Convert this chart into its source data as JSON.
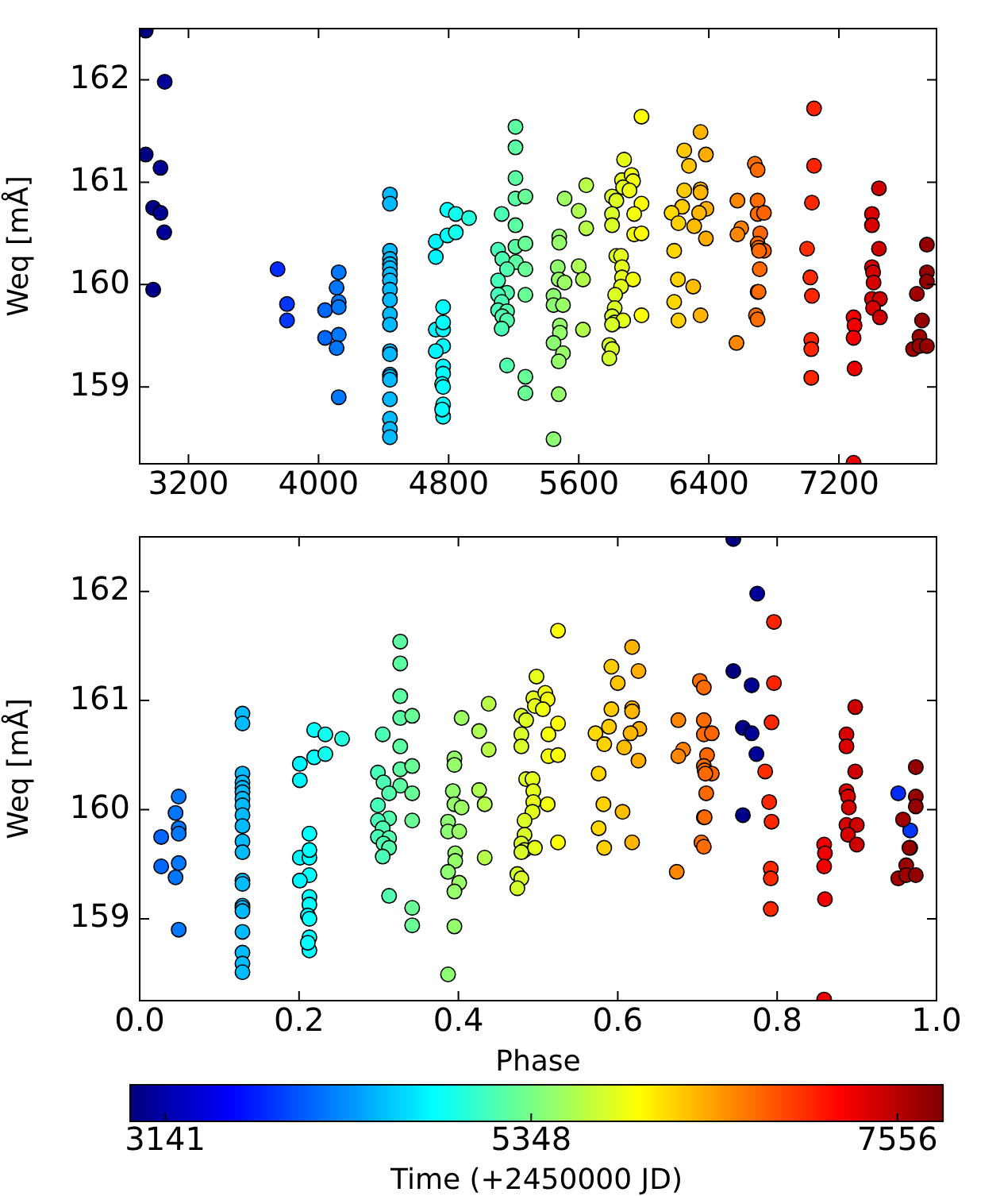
{
  "chart_data": [
    {
      "type": "scatter",
      "ylabel": "Weq [mÅ]",
      "marker": "circle",
      "legend": false,
      "x": [
        2937,
        3054,
        2937,
        3028,
        2983,
        3028,
        3051,
        2983,
        3748,
        3806,
        3806,
        4124,
        4111,
        4040,
        4124,
        4124,
        4040,
        4124,
        4111,
        4124,
        4439,
        4439,
        4439,
        4439,
        4439,
        4439,
        4439,
        4439,
        4439,
        4439,
        4439,
        4439,
        4439,
        4439,
        4439,
        4439,
        4439,
        4439,
        4439,
        4439,
        4439,
        4792,
        4844,
        4925,
        4721,
        4792,
        4844,
        4721,
        4766,
        4721,
        4766,
        4766,
        4766,
        4721,
        4766,
        4766,
        4760,
        4766,
        4766,
        4766,
        4760,
        5211,
        5211,
        5211,
        5211,
        5272,
        5126,
        5211,
        5211,
        5272,
        5104,
        5130,
        5214,
        5159,
        5272,
        5104,
        5159,
        5104,
        5272,
        5126,
        5104,
        5159,
        5130,
        5159,
        5126,
        5159,
        5272,
        5272,
        5513,
        5646,
        5600,
        5646,
        5480,
        5480,
        5471,
        5600,
        5477,
        5513,
        5626,
        5445,
        5445,
        5503,
        5484,
        5484,
        5626,
        5445,
        5503,
        5477,
        5477,
        5445,
        5986,
        5879,
        5866,
        5925,
        5934,
        5873,
        5912,
        5805,
        5831,
        5986,
        5805,
        5941,
        5805,
        5941,
        5986,
        5831,
        5860,
        5866,
        5866,
        5934,
        5860,
        5824,
        5821,
        5805,
        5821,
        5873,
        5805,
        5986,
        5788,
        5805,
        5788,
        6349,
        6249,
        6382,
        6278,
        6249,
        6349,
        6349,
        6236,
        6385,
        6171,
        6340,
        6213,
        6310,
        6382,
        6187,
        6210,
        6304,
        6187,
        6349,
        6213,
        6683,
        6700,
        6576,
        6700,
        6700,
        6739,
        6599,
        6576,
        6716,
        6700,
        6706,
        6739,
        6709,
        6713,
        6700,
        6706,
        6690,
        6700,
        6570,
        7047,
        7047,
        7034,
        7004,
        7024,
        7034,
        7030,
        7030,
        7030,
        7290,
        7296,
        7290,
        7296,
        7290,
        7446,
        7403,
        7403,
        7446,
        7403,
        7410,
        7413,
        7403,
        7452,
        7410,
        7452,
        7741,
        7741,
        7741,
        7679,
        7711,
        7695,
        7656,
        7695,
        7741
      ],
      "values": [
        162.48,
        161.98,
        161.27,
        161.14,
        160.75,
        160.7,
        160.51,
        159.95,
        160.15,
        159.81,
        159.65,
        160.12,
        159.97,
        159.75,
        159.83,
        159.78,
        159.48,
        159.51,
        159.38,
        158.9,
        160.88,
        160.79,
        160.33,
        160.25,
        160.2,
        160.16,
        160.1,
        160.04,
        159.95,
        159.85,
        159.71,
        159.61,
        159.35,
        159.32,
        159.12,
        159.1,
        159.07,
        158.88,
        158.69,
        158.59,
        158.51,
        160.73,
        160.69,
        160.65,
        160.42,
        160.48,
        160.51,
        160.27,
        159.78,
        159.56,
        159.56,
        159.63,
        159.4,
        159.35,
        159.2,
        159.13,
        159.03,
        159.0,
        158.83,
        158.71,
        158.78,
        161.54,
        161.34,
        161.04,
        160.84,
        160.86,
        160.69,
        160.58,
        160.37,
        160.4,
        160.34,
        160.25,
        160.22,
        160.15,
        160.15,
        160.04,
        159.92,
        159.9,
        159.9,
        159.83,
        159.75,
        159.74,
        159.69,
        159.65,
        159.57,
        159.21,
        159.1,
        158.94,
        160.84,
        160.97,
        160.72,
        160.55,
        160.47,
        160.41,
        160.17,
        160.18,
        160.05,
        160.02,
        160.05,
        159.89,
        159.8,
        159.8,
        159.6,
        159.53,
        159.56,
        159.43,
        159.33,
        159.25,
        158.93,
        158.49,
        161.64,
        161.22,
        161.02,
        161.07,
        161.01,
        160.95,
        160.92,
        160.86,
        160.82,
        160.79,
        160.69,
        160.69,
        160.58,
        160.49,
        160.5,
        160.28,
        160.28,
        160.17,
        160.07,
        160.05,
        159.98,
        159.9,
        159.77,
        159.69,
        159.63,
        159.65,
        159.61,
        159.7,
        159.41,
        159.37,
        159.28,
        161.49,
        161.31,
        161.27,
        161.16,
        160.92,
        160.93,
        160.9,
        160.76,
        160.74,
        160.7,
        160.7,
        160.6,
        160.57,
        160.45,
        160.33,
        160.05,
        159.98,
        159.83,
        159.7,
        159.65,
        161.18,
        161.12,
        160.82,
        160.82,
        160.69,
        160.7,
        160.55,
        160.49,
        160.5,
        160.4,
        160.36,
        160.33,
        160.33,
        160.15,
        159.93,
        159.93,
        159.7,
        159.66,
        159.43,
        161.72,
        161.16,
        160.8,
        160.35,
        160.07,
        159.89,
        159.46,
        159.37,
        159.09,
        159.68,
        159.6,
        159.48,
        159.18,
        158.26,
        160.94,
        160.69,
        160.58,
        160.35,
        160.17,
        160.12,
        160.02,
        159.86,
        159.86,
        159.77,
        159.68,
        160.39,
        160.12,
        160.03,
        159.91,
        159.65,
        159.49,
        159.37,
        159.4,
        159.4
      ],
      "xlim": [
        2900,
        7800
      ],
      "xticks": [
        3200,
        4000,
        4800,
        5600,
        6400,
        7200
      ],
      "ylim": [
        158.25,
        162.5
      ],
      "yticks": [
        159,
        160,
        161,
        162
      ]
    },
    {
      "type": "scatter",
      "xlabel": "Phase",
      "ylabel": "Weq [mÅ]",
      "marker": "circle",
      "legend": false,
      "x": [
        0.745,
        0.775,
        0.745,
        0.768,
        0.757,
        0.768,
        0.774,
        0.757,
        0.952,
        0.967,
        0.967,
        0.049,
        0.045,
        0.027,
        0.049,
        0.049,
        0.027,
        0.049,
        0.045,
        0.049,
        0.129,
        0.129,
        0.129,
        0.129,
        0.129,
        0.129,
        0.129,
        0.129,
        0.129,
        0.129,
        0.129,
        0.129,
        0.129,
        0.129,
        0.129,
        0.129,
        0.129,
        0.129,
        0.129,
        0.129,
        0.129,
        0.219,
        0.233,
        0.254,
        0.201,
        0.219,
        0.233,
        0.201,
        0.213,
        0.201,
        0.213,
        0.213,
        0.213,
        0.201,
        0.213,
        0.213,
        0.211,
        0.213,
        0.213,
        0.213,
        0.211,
        0.327,
        0.327,
        0.327,
        0.327,
        0.342,
        0.305,
        0.327,
        0.327,
        0.342,
        0.299,
        0.306,
        0.327,
        0.313,
        0.342,
        0.299,
        0.313,
        0.299,
        0.342,
        0.305,
        0.299,
        0.313,
        0.306,
        0.313,
        0.305,
        0.313,
        0.342,
        0.342,
        0.404,
        0.438,
        0.426,
        0.438,
        0.395,
        0.395,
        0.393,
        0.426,
        0.395,
        0.404,
        0.433,
        0.387,
        0.387,
        0.401,
        0.396,
        0.396,
        0.433,
        0.387,
        0.401,
        0.395,
        0.395,
        0.387,
        0.525,
        0.498,
        0.494,
        0.509,
        0.512,
        0.496,
        0.506,
        0.479,
        0.485,
        0.525,
        0.479,
        0.513,
        0.479,
        0.513,
        0.525,
        0.485,
        0.493,
        0.494,
        0.494,
        0.512,
        0.493,
        0.483,
        0.483,
        0.479,
        0.483,
        0.496,
        0.479,
        0.525,
        0.474,
        0.479,
        0.474,
        0.618,
        0.592,
        0.626,
        0.6,
        0.592,
        0.618,
        0.618,
        0.589,
        0.627,
        0.572,
        0.616,
        0.583,
        0.608,
        0.626,
        0.576,
        0.582,
        0.606,
        0.576,
        0.618,
        0.583,
        0.703,
        0.708,
        0.676,
        0.708,
        0.708,
        0.718,
        0.682,
        0.676,
        0.712,
        0.708,
        0.709,
        0.718,
        0.71,
        0.711,
        0.708,
        0.709,
        0.705,
        0.708,
        0.674,
        0.796,
        0.796,
        0.793,
        0.785,
        0.79,
        0.793,
        0.792,
        0.792,
        0.792,
        0.859,
        0.86,
        0.859,
        0.86,
        0.859,
        0.898,
        0.887,
        0.887,
        0.898,
        0.887,
        0.889,
        0.89,
        0.887,
        0.9,
        0.889,
        0.9,
        0.974,
        0.974,
        0.974,
        0.958,
        0.966,
        0.962,
        0.952,
        0.962,
        0.974
      ],
      "values": [
        162.48,
        161.98,
        161.27,
        161.14,
        160.75,
        160.7,
        160.51,
        159.95,
        160.15,
        159.81,
        159.65,
        160.12,
        159.97,
        159.75,
        159.83,
        159.78,
        159.48,
        159.51,
        159.38,
        158.9,
        160.88,
        160.79,
        160.33,
        160.25,
        160.2,
        160.16,
        160.1,
        160.04,
        159.95,
        159.85,
        159.71,
        159.61,
        159.35,
        159.32,
        159.12,
        159.1,
        159.07,
        158.88,
        158.69,
        158.59,
        158.51,
        160.73,
        160.69,
        160.65,
        160.42,
        160.48,
        160.51,
        160.27,
        159.78,
        159.56,
        159.56,
        159.63,
        159.4,
        159.35,
        159.2,
        159.13,
        159.03,
        159.0,
        158.83,
        158.71,
        158.78,
        161.54,
        161.34,
        161.04,
        160.84,
        160.86,
        160.69,
        160.58,
        160.37,
        160.4,
        160.34,
        160.25,
        160.22,
        160.15,
        160.15,
        160.04,
        159.92,
        159.9,
        159.9,
        159.83,
        159.75,
        159.74,
        159.69,
        159.65,
        159.57,
        159.21,
        159.1,
        158.94,
        160.84,
        160.97,
        160.72,
        160.55,
        160.47,
        160.41,
        160.17,
        160.18,
        160.05,
        160.02,
        160.05,
        159.89,
        159.8,
        159.8,
        159.6,
        159.53,
        159.56,
        159.43,
        159.33,
        159.25,
        158.93,
        158.49,
        161.64,
        161.22,
        161.02,
        161.07,
        161.01,
        160.95,
        160.92,
        160.86,
        160.82,
        160.79,
        160.69,
        160.69,
        160.58,
        160.49,
        160.5,
        160.28,
        160.28,
        160.17,
        160.07,
        160.05,
        159.98,
        159.9,
        159.77,
        159.69,
        159.63,
        159.65,
        159.61,
        159.7,
        159.41,
        159.37,
        159.28,
        161.49,
        161.31,
        161.27,
        161.16,
        160.92,
        160.93,
        160.9,
        160.76,
        160.74,
        160.7,
        160.7,
        160.6,
        160.57,
        160.45,
        160.33,
        160.05,
        159.98,
        159.83,
        159.7,
        159.65,
        161.18,
        161.12,
        160.82,
        160.82,
        160.69,
        160.7,
        160.55,
        160.49,
        160.5,
        160.4,
        160.36,
        160.33,
        160.33,
        160.15,
        159.93,
        159.93,
        159.7,
        159.66,
        159.43,
        161.72,
        161.16,
        160.8,
        160.35,
        160.07,
        159.89,
        159.46,
        159.37,
        159.09,
        159.68,
        159.6,
        159.48,
        159.18,
        158.26,
        160.94,
        160.69,
        160.58,
        160.35,
        160.17,
        160.12,
        160.02,
        159.86,
        159.86,
        159.77,
        159.68,
        160.39,
        160.12,
        160.03,
        159.91,
        159.65,
        159.49,
        159.37,
        159.4,
        159.4
      ],
      "cvalues": [
        2937,
        3054,
        2937,
        3028,
        2983,
        3028,
        3051,
        2983,
        3748,
        3806,
        3806,
        4124,
        4111,
        4040,
        4124,
        4124,
        4040,
        4124,
        4111,
        4124,
        4439,
        4439,
        4439,
        4439,
        4439,
        4439,
        4439,
        4439,
        4439,
        4439,
        4439,
        4439,
        4439,
        4439,
        4439,
        4439,
        4439,
        4439,
        4439,
        4439,
        4439,
        4792,
        4844,
        4925,
        4721,
        4792,
        4844,
        4721,
        4766,
        4721,
        4766,
        4766,
        4766,
        4721,
        4766,
        4766,
        4760,
        4766,
        4766,
        4766,
        4760,
        5211,
        5211,
        5211,
        5211,
        5272,
        5126,
        5211,
        5211,
        5272,
        5104,
        5130,
        5214,
        5159,
        5272,
        5104,
        5159,
        5104,
        5272,
        5126,
        5104,
        5159,
        5130,
        5159,
        5126,
        5159,
        5272,
        5272,
        5513,
        5646,
        5600,
        5646,
        5480,
        5480,
        5471,
        5600,
        5477,
        5513,
        5626,
        5445,
        5445,
        5503,
        5484,
        5484,
        5626,
        5445,
        5503,
        5477,
        5477,
        5445,
        5986,
        5879,
        5866,
        5925,
        5934,
        5873,
        5912,
        5805,
        5831,
        5986,
        5805,
        5941,
        5805,
        5941,
        5986,
        5831,
        5860,
        5866,
        5866,
        5934,
        5860,
        5824,
        5821,
        5805,
        5821,
        5873,
        5805,
        5986,
        5788,
        5805,
        5788,
        6349,
        6249,
        6382,
        6278,
        6249,
        6349,
        6349,
        6236,
        6385,
        6171,
        6340,
        6213,
        6310,
        6382,
        6187,
        6210,
        6304,
        6187,
        6349,
        6213,
        6683,
        6700,
        6576,
        6700,
        6700,
        6739,
        6599,
        6576,
        6716,
        6700,
        6706,
        6739,
        6709,
        6713,
        6700,
        6706,
        6690,
        6700,
        6570,
        7047,
        7047,
        7034,
        7004,
        7024,
        7034,
        7030,
        7030,
        7030,
        7290,
        7296,
        7290,
        7296,
        7290,
        7446,
        7403,
        7403,
        7446,
        7403,
        7410,
        7413,
        7403,
        7452,
        7410,
        7452,
        7741,
        7741,
        7741,
        7679,
        7711,
        7695,
        7656,
        7695,
        7741
      ],
      "xlim": [
        0,
        1
      ],
      "xticks": [
        {
          "value": 0,
          "label": "0.0"
        },
        {
          "value": 0.2,
          "label": "0.2"
        },
        {
          "value": 0.4,
          "label": "0.4"
        },
        {
          "value": 0.6,
          "label": "0.6"
        },
        {
          "value": 0.8,
          "label": "0.8"
        },
        {
          "value": 1,
          "label": "1.0"
        }
      ],
      "ylim": [
        158.25,
        162.5
      ],
      "yticks": [
        159,
        160,
        161,
        162
      ],
      "clim": [
        2930,
        7830
      ],
      "cticks": [
        3141,
        5348,
        7556
      ],
      "clabel": "Time (+2450000 JD)"
    }
  ]
}
